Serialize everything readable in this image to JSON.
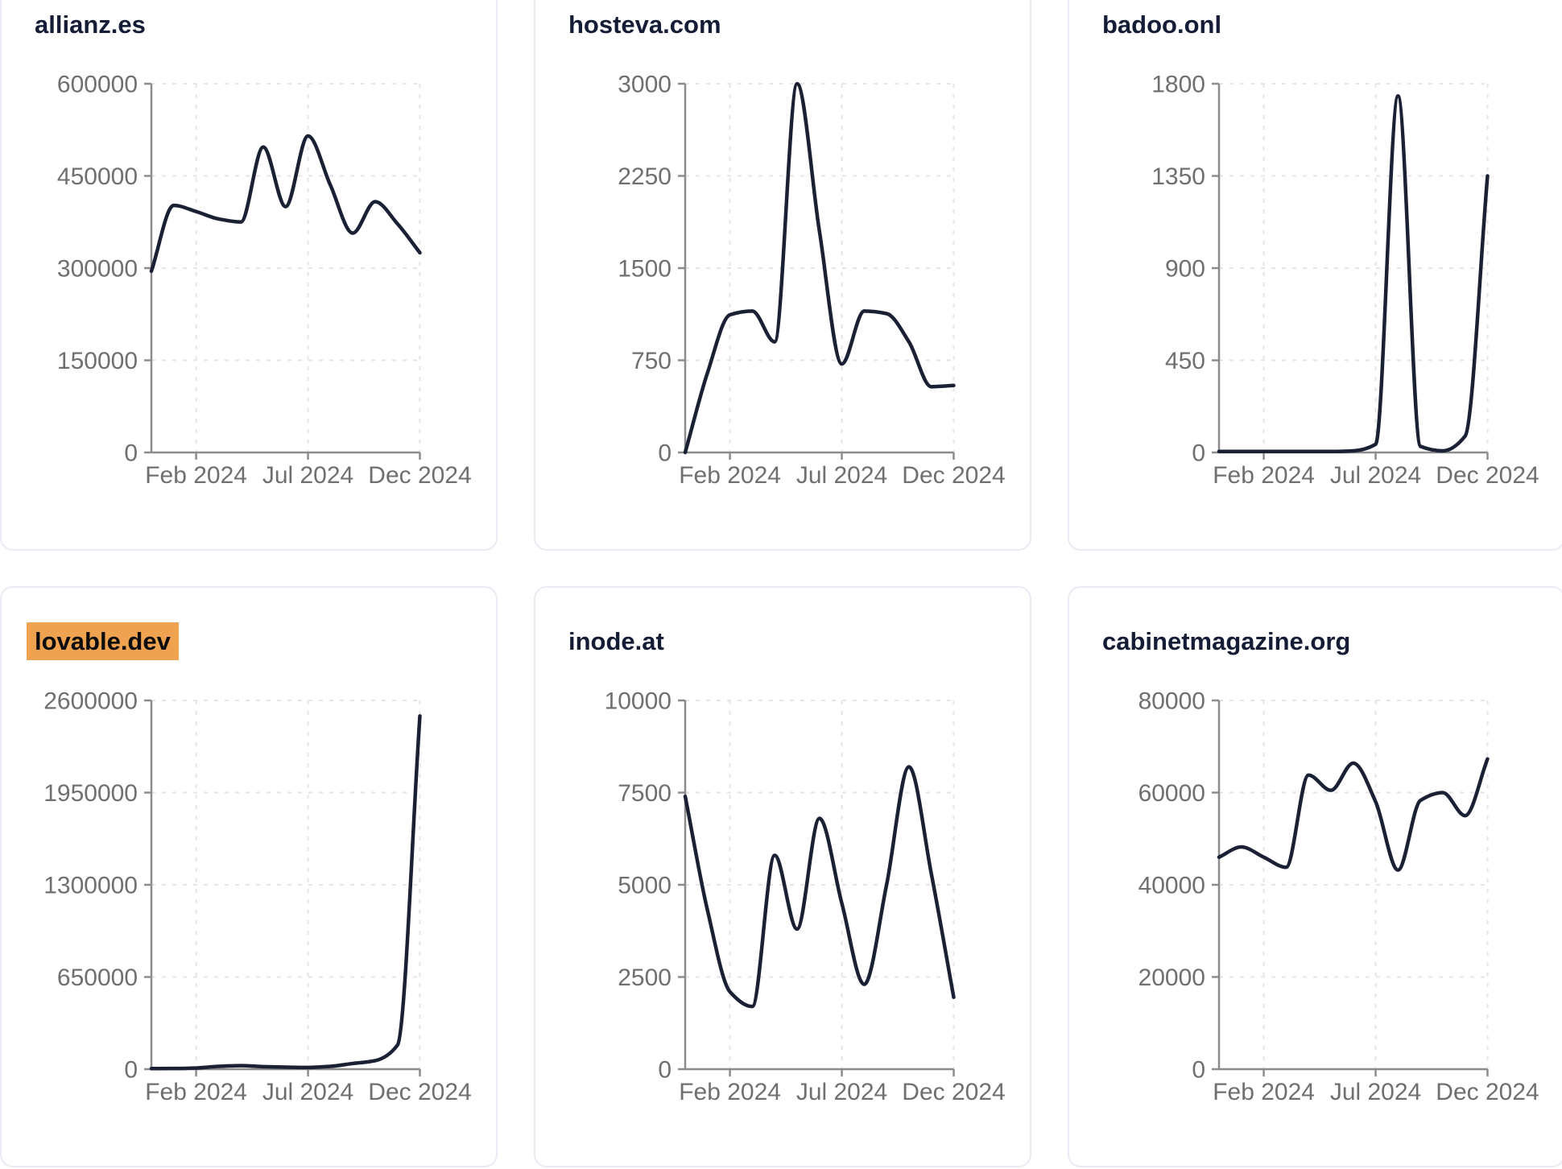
{
  "styles": {
    "line_color": "#1b2134",
    "axis_color": "#8c8c8c",
    "grid_color": "#e5e5e9",
    "tick_label_color": "#6f6f6f",
    "title_color": "#141c36",
    "highlight_bg": "#efa250",
    "highlight_text": "#0c0c0c",
    "card_border": "#e9ebf2",
    "background": "#ffffff"
  },
  "chart_data": [
    {
      "type": "line",
      "title": "allianz.es",
      "title_highlighted": false,
      "x": [
        "Dec 2023",
        "Jan 2024",
        "Feb 2024",
        "Mar 2024",
        "Apr 2024",
        "May 2024",
        "Jun 2024",
        "Jul 2024",
        "Aug 2024",
        "Sep 2024",
        "Oct 2024",
        "Nov 2024",
        "Dec 2024"
      ],
      "values": [
        295000,
        402000,
        392000,
        380000,
        375000,
        497000,
        400000,
        515000,
        435000,
        357000,
        408000,
        372000,
        325000
      ],
      "y_ticks": [
        0,
        150000,
        300000,
        450000,
        600000
      ],
      "ylim": [
        0,
        600000
      ],
      "x_tick_labels": [
        "Feb 2024",
        "Jul 2024",
        "Dec 2024"
      ],
      "x_tick_indices": [
        2,
        7,
        12
      ],
      "grid": "dashed",
      "legend": "none"
    },
    {
      "type": "line",
      "title": "hosteva.com",
      "title_highlighted": false,
      "x": [
        "Dec 2023",
        "Jan 2024",
        "Feb 2024",
        "Mar 2024",
        "Apr 2024",
        "May 2024",
        "Jun 2024",
        "Jul 2024",
        "Aug 2024",
        "Sep 2024",
        "Oct 2024",
        "Nov 2024",
        "Dec 2024"
      ],
      "values": [
        0,
        650,
        1120,
        1150,
        900,
        3000,
        1800,
        720,
        1150,
        1130,
        900,
        535,
        545
      ],
      "y_ticks": [
        0,
        750,
        1500,
        2250,
        3000
      ],
      "ylim": [
        0,
        3000
      ],
      "x_tick_labels": [
        "Feb 2024",
        "Jul 2024",
        "Dec 2024"
      ],
      "x_tick_indices": [
        2,
        7,
        12
      ],
      "grid": "dashed",
      "legend": "none"
    },
    {
      "type": "line",
      "title": "badoo.onl",
      "title_highlighted": false,
      "x": [
        "Dec 2023",
        "Jan 2024",
        "Feb 2024",
        "Mar 2024",
        "Apr 2024",
        "May 2024",
        "Jun 2024",
        "Jul 2024",
        "Aug 2024",
        "Sep 2024",
        "Oct 2024",
        "Nov 2024",
        "Dec 2024"
      ],
      "values": [
        5,
        5,
        5,
        5,
        5,
        5,
        8,
        40,
        1740,
        30,
        8,
        80,
        1350
      ],
      "y_ticks": [
        0,
        450,
        900,
        1350,
        1800
      ],
      "ylim": [
        0,
        1800
      ],
      "x_tick_labels": [
        "Feb 2024",
        "Jul 2024",
        "Dec 2024"
      ],
      "x_tick_indices": [
        2,
        7,
        12
      ],
      "grid": "dashed",
      "legend": "none"
    },
    {
      "type": "line",
      "title": "lovable.dev",
      "title_highlighted": true,
      "x": [
        "Dec 2023",
        "Jan 2024",
        "Feb 2024",
        "Mar 2024",
        "Apr 2024",
        "May 2024",
        "Jun 2024",
        "Jul 2024",
        "Aug 2024",
        "Sep 2024",
        "Oct 2024",
        "Nov 2024",
        "Dec 2024"
      ],
      "values": [
        4000,
        5000,
        8000,
        20000,
        25000,
        18000,
        14000,
        12000,
        20000,
        40000,
        60000,
        170000,
        2490000
      ],
      "y_ticks": [
        0,
        650000,
        1300000,
        1950000,
        2600000
      ],
      "ylim": [
        0,
        2600000
      ],
      "x_tick_labels": [
        "Feb 2024",
        "Jul 2024",
        "Dec 2024"
      ],
      "x_tick_indices": [
        2,
        7,
        12
      ],
      "grid": "dashed",
      "legend": "none"
    },
    {
      "type": "line",
      "title": "inode.at",
      "title_highlighted": false,
      "x": [
        "Dec 2023",
        "Jan 2024",
        "Feb 2024",
        "Mar 2024",
        "Apr 2024",
        "May 2024",
        "Jun 2024",
        "Jul 2024",
        "Aug 2024",
        "Sep 2024",
        "Oct 2024",
        "Nov 2024",
        "Dec 2024"
      ],
      "values": [
        7400,
        4300,
        2100,
        1700,
        5800,
        3800,
        6800,
        4500,
        2300,
        5000,
        8200,
        5300,
        1950
      ],
      "y_ticks": [
        0,
        2500,
        5000,
        7500,
        10000
      ],
      "ylim": [
        0,
        10000
      ],
      "x_tick_labels": [
        "Feb 2024",
        "Jul 2024",
        "Dec 2024"
      ],
      "x_tick_indices": [
        2,
        7,
        12
      ],
      "grid": "dashed",
      "legend": "none"
    },
    {
      "type": "line",
      "title": "cabinetmagazine.org",
      "title_highlighted": false,
      "x": [
        "Dec 2023",
        "Jan 2024",
        "Feb 2024",
        "Mar 2024",
        "Apr 2024",
        "May 2024",
        "Jun 2024",
        "Jul 2024",
        "Aug 2024",
        "Sep 2024",
        "Oct 2024",
        "Nov 2024",
        "Dec 2024"
      ],
      "values": [
        46000,
        48200,
        46000,
        43800,
        63800,
        60500,
        66400,
        58000,
        43200,
        58300,
        60000,
        55000,
        67300
      ],
      "y_ticks": [
        0,
        20000,
        40000,
        60000,
        80000
      ],
      "ylim": [
        0,
        80000
      ],
      "x_tick_labels": [
        "Feb 2024",
        "Jul 2024",
        "Dec 2024"
      ],
      "x_tick_indices": [
        2,
        7,
        12
      ],
      "grid": "dashed",
      "legend": "none"
    }
  ]
}
